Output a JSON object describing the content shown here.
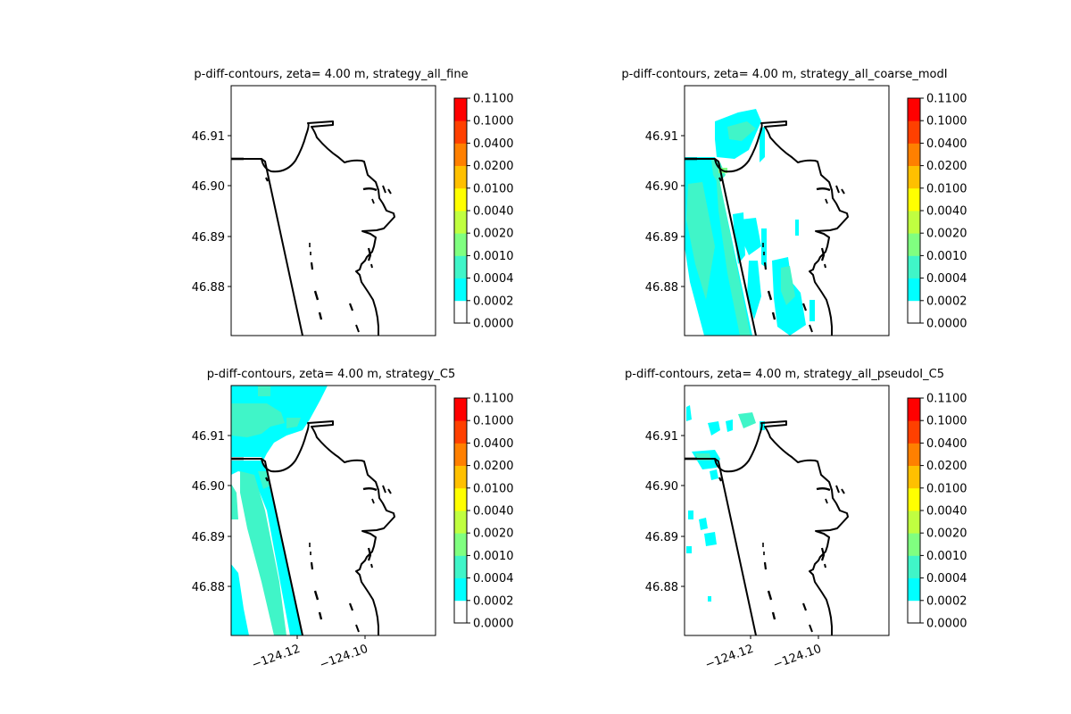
{
  "colorbar": {
    "levels": [
      "0.0000",
      "0.0002",
      "0.0004",
      "0.0010",
      "0.0020",
      "0.0040",
      "0.0100",
      "0.0200",
      "0.0400",
      "0.1000",
      "0.1100"
    ],
    "colors": [
      "#ffffff",
      "#00ffff",
      "#40f5c8",
      "#80ff80",
      "#c0ff40",
      "#ffff00",
      "#ffc000",
      "#ff8000",
      "#ff4000",
      "#ff0000"
    ]
  },
  "chart_data": [
    {
      "type": "heatmap",
      "title": "p-diff-contours, zeta= 4.00 m, strategy_all_fine",
      "yticks": [
        "46.91",
        "46.90",
        "46.89",
        "46.88"
      ],
      "xticks": [],
      "coverage": "none"
    },
    {
      "type": "heatmap",
      "title": "p-diff-contours, zeta= 4.00 m, strategy_all_coarse_modI",
      "yticks": [
        "46.91",
        "46.90",
        "46.89",
        "46.88"
      ],
      "xticks": [],
      "coverage": "broad offshore cyan band with scattered patches"
    },
    {
      "type": "heatmap",
      "title": "p-diff-contours, zeta= 4.00 m, strategy_C5",
      "yticks": [
        "46.91",
        "46.90",
        "46.89",
        "46.88"
      ],
      "xticks": [
        "−124.12",
        "−124.10"
      ],
      "coverage": "continuous bands along the western edge"
    },
    {
      "type": "heatmap",
      "title": "p-diff-contours, zeta= 4.00 m, strategy_all_pseudoI_C5",
      "yticks": [
        "46.91",
        "46.90",
        "46.89",
        "46.88"
      ],
      "xticks": [
        "−124.12",
        "−124.10"
      ],
      "coverage": "sparse small cyan patches"
    }
  ]
}
